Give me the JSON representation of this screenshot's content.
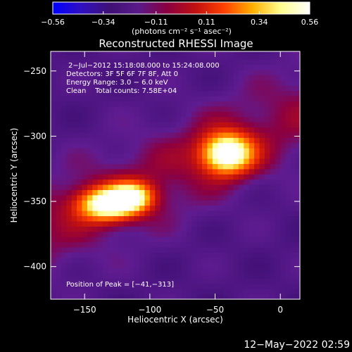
{
  "chart_data": {
    "type": "heatmap",
    "title": "Reconstructed RHESSI Image",
    "xlabel": "Heliocentric X (arcsec)",
    "ylabel": "Heliocentric Y (arcsec)",
    "xlim": [
      -176,
      15
    ],
    "ylim": [
      -425,
      -235
    ],
    "x_ticks": [
      -150,
      -100,
      -50,
      0
    ],
    "x_tick_labels": [
      "−150",
      "−100",
      "−50",
      "0"
    ],
    "y_ticks": [
      -250,
      -300,
      -350,
      -400
    ],
    "y_tick_labels": [
      "−250",
      "−300",
      "−350",
      "−400"
    ],
    "colorbar": {
      "range": [
        -0.56,
        0.56
      ],
      "ticks": [
        -0.56,
        -0.34,
        -0.11,
        0.11,
        0.34,
        0.56
      ],
      "tick_labels": [
        "−0.56",
        "−0.34",
        "−0.11",
        "0.11",
        "0.34",
        "0.56"
      ],
      "unit_label": "(photons cm⁻² s⁻¹ asec⁻²)",
      "colors": [
        "#0000ff",
        "#3010c0",
        "#401075",
        "#5a1a8a",
        "#8a0040",
        "#c01010",
        "#ff4000",
        "#ffb000",
        "#ffff90",
        "#ffffff"
      ]
    },
    "annotations": [
      "2−Jul−2012 15:18:08.000 to 15:24:08.000",
      "Detectors: 3F 5F 6F 7F 8F, Att 0",
      "Energy Range: 3.0 − 6.0 keV",
      "Clean    Total counts: 7.58E+04",
      "Position of Peak = [−41,−313]"
    ],
    "sources": [
      {
        "x": -133,
        "y": -352,
        "sx": 16,
        "sy": 9,
        "amp": 0.5
      },
      {
        "x": -113,
        "y": -346,
        "sx": 12,
        "sy": 8,
        "amp": 0.36
      },
      {
        "x": -41,
        "y": -313,
        "sx": 14,
        "sy": 11,
        "amp": 0.56
      }
    ],
    "peak": [
      -41,
      -313
    ]
  },
  "footer_timestamp": "12−May−2022 02:59"
}
